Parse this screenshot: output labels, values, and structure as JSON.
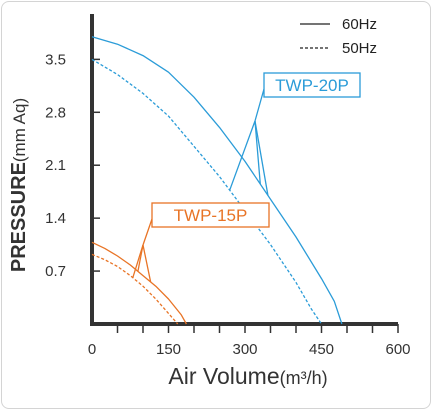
{
  "chart_data": {
    "type": "line",
    "xlabel": "Air Volume",
    "xlabel_unit": "(m³/h)",
    "ylabel": "PRESSURE",
    "ylabel_unit": "(mm Aq)",
    "xlim": [
      0,
      600
    ],
    "ylim": [
      0,
      4.1
    ],
    "x_ticks": [
      0,
      150,
      300,
      450,
      600
    ],
    "x_tick_labels": [
      "0",
      "150",
      "300",
      "450",
      "600"
    ],
    "y_ticks": [
      0.7,
      1.4,
      2.1,
      2.8,
      3.5
    ],
    "y_tick_labels": [
      "0.7",
      "1.4",
      "2.1",
      "2.8",
      "3.5"
    ],
    "x_minor_step": 50,
    "grid": false,
    "legend": {
      "position": "top-right",
      "entries": [
        {
          "label": "60Hz",
          "style": "solid"
        },
        {
          "label": "50Hz",
          "style": "dashed"
        }
      ]
    },
    "series": [
      {
        "model": "TWP-20P",
        "frequency": "60Hz",
        "style": "solid",
        "color": "#2b9cd8",
        "x": [
          0,
          50,
          100,
          150,
          200,
          250,
          300,
          350,
          400,
          450,
          475,
          490
        ],
        "y": [
          3.8,
          3.7,
          3.55,
          3.33,
          3.0,
          2.6,
          2.15,
          1.65,
          1.15,
          0.6,
          0.3,
          0.0
        ]
      },
      {
        "model": "TWP-20P",
        "frequency": "50Hz",
        "style": "dashed",
        "color": "#2b9cd8",
        "x": [
          0,
          50,
          100,
          150,
          200,
          250,
          300,
          350,
          400,
          430,
          450
        ],
        "y": [
          3.5,
          3.3,
          3.05,
          2.75,
          2.35,
          1.95,
          1.5,
          1.05,
          0.55,
          0.2,
          0.0
        ]
      },
      {
        "model": "TWP-15P",
        "frequency": "60Hz",
        "style": "solid",
        "color": "#e87426",
        "x": [
          0,
          25,
          50,
          75,
          100,
          125,
          150,
          175,
          185
        ],
        "y": [
          1.08,
          1.0,
          0.9,
          0.78,
          0.64,
          0.5,
          0.33,
          0.12,
          0.0
        ]
      },
      {
        "model": "TWP-15P",
        "frequency": "50Hz",
        "style": "dashed",
        "color": "#e87426",
        "x": [
          0,
          25,
          50,
          75,
          100,
          125,
          150,
          168
        ],
        "y": [
          0.92,
          0.85,
          0.76,
          0.64,
          0.5,
          0.33,
          0.14,
          0.0
        ]
      }
    ],
    "annotations": [
      {
        "text": "TWP-20P",
        "color": "#2b9cd8",
        "points_to_x": [
          330,
          345,
          270
        ]
      },
      {
        "text": "TWP-15P",
        "color": "#e87426",
        "points_to_x": [
          90,
          115,
          80
        ]
      }
    ]
  }
}
